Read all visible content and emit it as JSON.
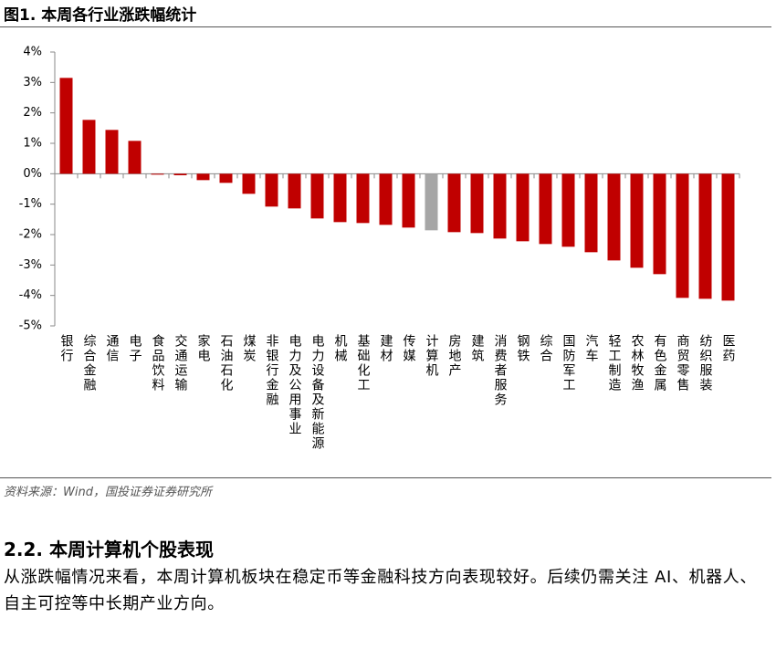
{
  "header": {
    "title": "图1. 本周各行业涨跌幅统计"
  },
  "chart_data": {
    "type": "bar",
    "categories": [
      "银行",
      "综合金融",
      "通信",
      "电子",
      "食品饮料",
      "交通运输",
      "家电",
      "石油石化",
      "煤炭",
      "非银行金融",
      "电力及公用事业",
      "电力设备及新能源",
      "机械",
      "基础化工",
      "建材",
      "传媒",
      "计算机",
      "房地产",
      "建筑",
      "消费者服务",
      "钢铁",
      "综合",
      "国防军工",
      "汽车",
      "轻工制造",
      "农林牧渔",
      "有色金属",
      "商贸零售",
      "纺织服装",
      "医药"
    ],
    "values": [
      3.15,
      1.77,
      1.44,
      1.08,
      -0.03,
      -0.05,
      -0.21,
      -0.3,
      -0.66,
      -1.08,
      -1.14,
      -1.47,
      -1.59,
      -1.62,
      -1.68,
      -1.77,
      -1.86,
      -1.92,
      -1.95,
      -2.13,
      -2.22,
      -2.31,
      -2.4,
      -2.58,
      -2.85,
      -3.09,
      -3.3,
      -4.08,
      -4.11,
      -4.17
    ],
    "colors": [
      "#c00000",
      "#c00000",
      "#c00000",
      "#c00000",
      "#c00000",
      "#c00000",
      "#c00000",
      "#c00000",
      "#c00000",
      "#c00000",
      "#c00000",
      "#c00000",
      "#c00000",
      "#c00000",
      "#c00000",
      "#c00000",
      "#a6a6a6",
      "#c00000",
      "#c00000",
      "#c00000",
      "#c00000",
      "#c00000",
      "#c00000",
      "#c00000",
      "#c00000",
      "#c00000",
      "#c00000",
      "#c00000",
      "#c00000",
      "#c00000"
    ],
    "ylim": [
      -5,
      4
    ],
    "yticks": [
      {
        "value": -5,
        "label": "-5%"
      },
      {
        "value": -4,
        "label": "-4%"
      },
      {
        "value": -3,
        "label": "-3%"
      },
      {
        "value": -2,
        "label": "-2%"
      },
      {
        "value": -1,
        "label": "-1%"
      },
      {
        "value": 0,
        "label": "0%"
      },
      {
        "value": 1,
        "label": "1%"
      },
      {
        "value": 2,
        "label": "2%"
      },
      {
        "value": 3,
        "label": "3%"
      },
      {
        "value": 4,
        "label": "4%"
      }
    ],
    "grid": false
  },
  "source": "资料来源：Wind，国投证券证券研究所",
  "section": {
    "heading": "2.2. 本周计算机个股表现",
    "paragraph": "从涨跌幅情况来看，本周计算机板块在稳定币等金融科技方向表现较好。后续仍需关注 AI、机器人、自主可控等中长期产业方向。"
  }
}
